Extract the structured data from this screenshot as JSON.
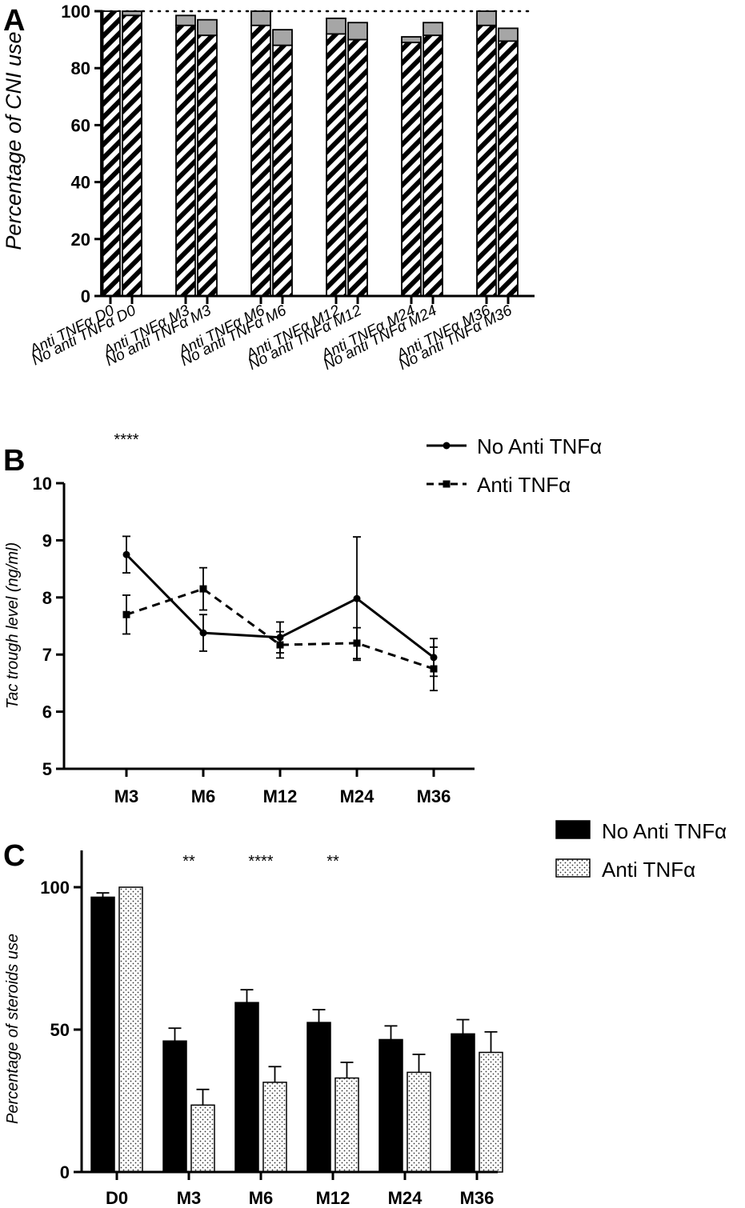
{
  "chart_data": [
    {
      "panel": "A",
      "type": "bar",
      "ylabel": "Percentage of CNI use",
      "ylim": [
        0,
        100
      ],
      "yticks": [
        "0",
        "20",
        "40",
        "60",
        "80",
        "100"
      ],
      "reference_line": 100,
      "categories": [
        "Anti TNFα D0",
        "No anti TNFα D0",
        "Anti TNFα M3",
        "No anti TNFα M3",
        "Anti TNFα M6",
        "No anti TNFα M6",
        "Anti TNFα M12",
        "No anti TNFα M12",
        "Anti TNFα M24",
        "No anti TNFα M24",
        "Anti TNFα M36",
        "No anti TNFα M36"
      ],
      "series": [
        {
          "name": "hatched",
          "color": "#000000",
          "values": [
            100,
            98.5,
            95,
            91.5,
            95,
            88,
            92,
            90,
            89,
            91.5,
            95,
            89.5
          ]
        },
        {
          "name": "gray",
          "color": "#a6a6a6",
          "values": [
            0,
            1.5,
            3.5,
            5.5,
            5,
            5.5,
            5.5,
            6,
            2,
            4.5,
            5,
            4.5
          ]
        }
      ],
      "grid": false
    },
    {
      "panel": "B",
      "type": "line",
      "ylabel": "Tac trough level (ng/ml)",
      "ylim": [
        5,
        10
      ],
      "yticks": [
        "5",
        "6",
        "7",
        "8",
        "9",
        "10"
      ],
      "categories": [
        "M3",
        "M6",
        "M12",
        "M24",
        "M36"
      ],
      "series": [
        {
          "name": "No Anti TNFα",
          "style": "solid",
          "marker": "circle",
          "values": [
            8.75,
            7.38,
            7.3,
            7.98,
            6.95
          ],
          "errors": [
            0.32,
            0.32,
            0.27,
            1.08,
            0.33
          ]
        },
        {
          "name": "Anti TNFα",
          "style": "dashed",
          "marker": "square",
          "values": [
            7.7,
            8.15,
            7.17,
            7.2,
            6.75
          ],
          "errors": [
            0.34,
            0.37,
            0.23,
            0.27,
            0.38
          ]
        }
      ],
      "significance": [
        {
          "category": "M3",
          "label": "****"
        }
      ],
      "legend": "top-right",
      "grid": false
    },
    {
      "panel": "C",
      "type": "bar",
      "ylabel": "Percentage of steroids use",
      "ylim": [
        0,
        100
      ],
      "yticks": [
        "0",
        "50",
        "100"
      ],
      "categories": [
        "D0",
        "M3",
        "M6",
        "M12",
        "M24",
        "M36"
      ],
      "series": [
        {
          "name": "No Anti TNFα",
          "fill": "solid",
          "color": "#000000",
          "values": [
            96.5,
            46,
            59.5,
            52.5,
            46.5,
            48.5
          ],
          "errors": [
            1.5,
            4.5,
            4.5,
            4.5,
            4.8,
            5
          ]
        },
        {
          "name": "Anti TNFα",
          "fill": "dotted",
          "color": "#ffffff",
          "values": [
            100,
            23.5,
            31.5,
            33,
            35,
            42
          ],
          "errors": [
            0,
            5.5,
            5.5,
            5.5,
            6.3,
            7.2
          ]
        }
      ],
      "significance": [
        {
          "category": "M3",
          "label": "**"
        },
        {
          "category": "M6",
          "label": "****"
        },
        {
          "category": "M12",
          "label": "**"
        }
      ],
      "legend": "top-right",
      "grid": false
    }
  ],
  "panels": {
    "a": "A",
    "b": "B",
    "c": "C"
  }
}
